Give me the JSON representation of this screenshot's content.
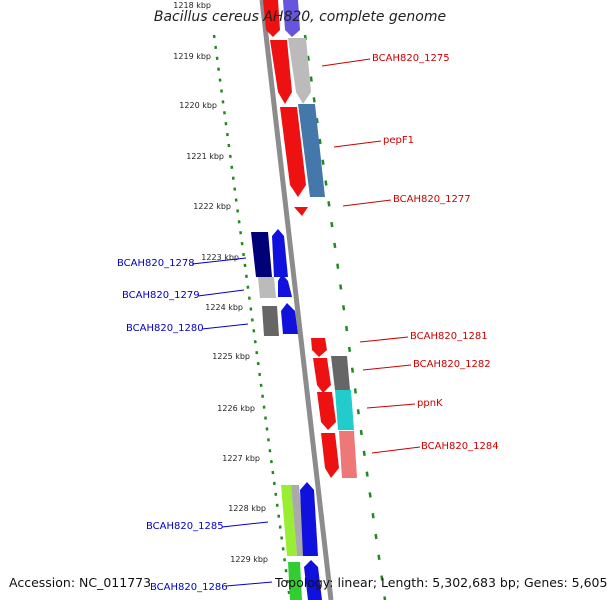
{
  "title": "Bacillus cereus AH820, complete genome",
  "ticks": [
    "1218 kbp",
    "1219 kbp",
    "1220 kbp",
    "1221 kbp",
    "1222 kbp",
    "1223 kbp",
    "1224 kbp",
    "1225 kbp",
    "1226 kbp",
    "1227 kbp",
    "1228 kbp",
    "1229 kbp"
  ],
  "genes_right": [
    "BCAH820_1275",
    "pepF1",
    "BCAH820_1277",
    "BCAH820_1281",
    "BCAH820_1282",
    "ppnK",
    "BCAH820_1284"
  ],
  "genes_left": [
    "BCAH820_1278",
    "BCAH820_1279",
    "BCAH820_1280",
    "BCAH820_1285",
    "BCAH820_1286"
  ],
  "colors": {
    "label_forward": "#cc0000",
    "label_reverse": "#0000cc",
    "backbone": "#888888",
    "guide": "#228822"
  },
  "footer": {
    "accession": "Accession: NC_011773",
    "info": "Topology: linear; Length: 5,302,683 bp; Genes: 5,605"
  }
}
